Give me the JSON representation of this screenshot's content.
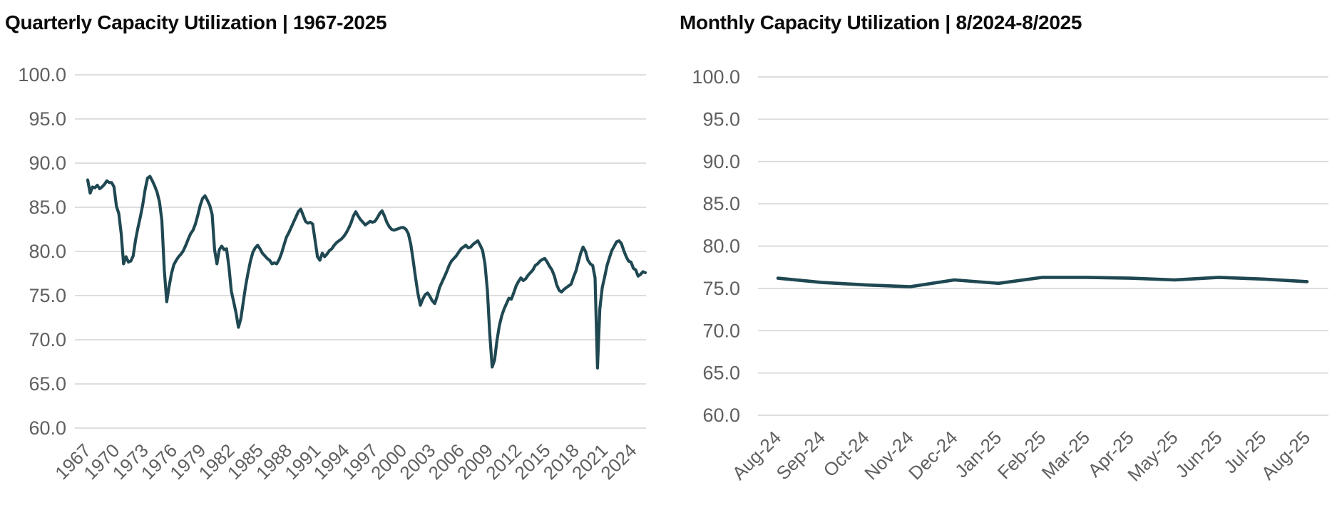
{
  "colors": {
    "series": "#1f4852",
    "gridline": "#d9d9d9",
    "axis_text": "#606060",
    "title_text": "#0b0b0b",
    "background": "#ffffff"
  },
  "chart_data": [
    {
      "type": "line",
      "title": "Quarterly Capacity Utilization | 1967-2025",
      "frequency": "quarterly",
      "x_start": "1967 Q1",
      "x_end": "2025 Q2",
      "x_tick_labels": [
        "1967",
        "1970",
        "1973",
        "1976",
        "1979",
        "1982",
        "1985",
        "1988",
        "1991",
        "1994",
        "1997",
        "2000",
        "2003",
        "2006",
        "2009",
        "2012",
        "2015",
        "2018",
        "2021",
        "2024"
      ],
      "x_tick_every": 12,
      "y_tick_labels": [
        "100.0",
        "95.0",
        "90.0",
        "85.0",
        "80.0",
        "75.0",
        "70.0",
        "65.0",
        "60.0"
      ],
      "ylim": [
        60,
        100
      ],
      "y_tick_step": 5,
      "grid": "horizontal",
      "legend": "none",
      "line_color": "#1f4852",
      "values": [
        88.1,
        86.6,
        87.3,
        87.2,
        87.5,
        87.1,
        87.3,
        87.6,
        88.0,
        87.8,
        87.8,
        87.3,
        85.1,
        84.3,
        82.0,
        78.6,
        79.4,
        78.8,
        78.9,
        79.5,
        81.3,
        82.7,
        83.9,
        85.3,
        87.0,
        88.3,
        88.5,
        88.0,
        87.4,
        86.7,
        85.6,
        83.5,
        77.9,
        74.3,
        76.0,
        77.5,
        78.5,
        79.0,
        79.4,
        79.7,
        80.1,
        80.7,
        81.4,
        82.0,
        82.4,
        83.1,
        84.1,
        85.2,
        86.0,
        86.3,
        85.8,
        85.2,
        84.2,
        80.2,
        78.6,
        80.2,
        80.6,
        80.2,
        80.3,
        78.3,
        75.5,
        74.3,
        73.0,
        71.4,
        72.4,
        74.3,
        76.1,
        77.6,
        78.9,
        79.9,
        80.4,
        80.7,
        80.3,
        79.8,
        79.5,
        79.2,
        79.0,
        78.6,
        78.7,
        78.6,
        79.1,
        79.8,
        80.7,
        81.6,
        82.1,
        82.7,
        83.3,
        83.9,
        84.5,
        84.8,
        84.1,
        83.4,
        83.2,
        83.3,
        83.1,
        81.3,
        79.4,
        79.0,
        79.8,
        79.4,
        79.7,
        80.1,
        80.3,
        80.7,
        81.0,
        81.2,
        81.4,
        81.7,
        82.1,
        82.6,
        83.2,
        84.0,
        84.5,
        84.0,
        83.6,
        83.3,
        83.0,
        83.2,
        83.4,
        83.3,
        83.4,
        83.8,
        84.3,
        84.6,
        84.0,
        83.3,
        82.8,
        82.5,
        82.4,
        82.5,
        82.6,
        82.7,
        82.7,
        82.5,
        82.0,
        80.8,
        79.0,
        77.0,
        75.2,
        73.9,
        74.6,
        75.1,
        75.3,
        74.9,
        74.4,
        74.1,
        74.9,
        75.9,
        76.5,
        77.1,
        77.7,
        78.4,
        78.9,
        79.2,
        79.5,
        79.9,
        80.3,
        80.5,
        80.7,
        80.4,
        80.5,
        80.8,
        81.0,
        81.2,
        80.7,
        80.1,
        78.6,
        75.6,
        70.7,
        66.9,
        67.7,
        69.9,
        71.6,
        72.7,
        73.5,
        74.1,
        74.7,
        74.6,
        75.3,
        76.1,
        76.6,
        77.0,
        76.7,
        76.9,
        77.3,
        77.6,
        77.9,
        78.4,
        78.6,
        78.9,
        79.1,
        79.2,
        78.8,
        78.3,
        77.9,
        77.2,
        76.2,
        75.6,
        75.4,
        75.7,
        75.9,
        76.1,
        76.3,
        77.1,
        77.8,
        78.8,
        79.8,
        80.5,
        80.0,
        79.0,
        78.6,
        78.4,
        77.0,
        66.8,
        73.5,
        75.9,
        77.1,
        78.4,
        79.3,
        80.1,
        80.6,
        81.1,
        81.2,
        80.9,
        80.1,
        79.4,
        78.9,
        78.8,
        78.1,
        77.9,
        77.2,
        77.4,
        77.7,
        77.6
      ]
    },
    {
      "type": "line",
      "title": "Monthly Capacity Utilization | 8/2024-8/2025",
      "frequency": "monthly",
      "categories": [
        "Aug-24",
        "Sep-24",
        "Oct-24",
        "Nov-24",
        "Dec-24",
        "Jan-25",
        "Feb-25",
        "Mar-25",
        "Apr-25",
        "May-25",
        "Jun-25",
        "Jul-25",
        "Aug-25"
      ],
      "y_tick_labels": [
        "100.0",
        "95.0",
        "90.0",
        "85.0",
        "80.0",
        "75.0",
        "70.0",
        "65.0",
        "60.0"
      ],
      "ylim": [
        60,
        100
      ],
      "y_tick_step": 5,
      "grid": "horizontal",
      "legend": "none",
      "line_color": "#1f4852",
      "values": [
        76.2,
        75.7,
        75.4,
        75.2,
        76.0,
        75.6,
        76.3,
        76.3,
        76.2,
        76.0,
        76.3,
        76.1,
        75.8
      ]
    }
  ]
}
